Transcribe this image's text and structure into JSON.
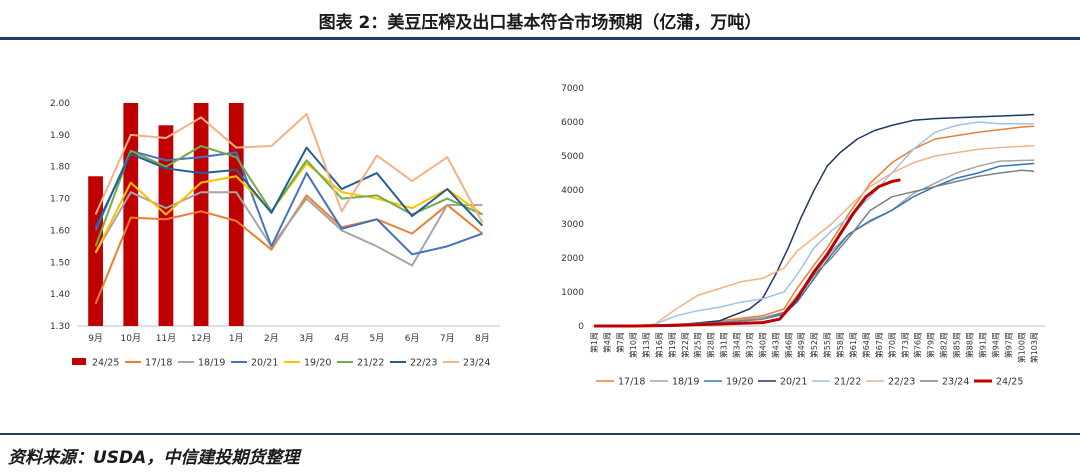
{
  "header": {
    "title": "图表 2：美豆压榨及出口基本符合市场预期（亿蒲，万吨）"
  },
  "footer": {
    "source": "资料来源：USDA，中信建投期货整理"
  },
  "chart_data": [
    {
      "type": "bar+line",
      "categories": [
        "9月",
        "10月",
        "11月",
        "12月",
        "1月",
        "2月",
        "3月",
        "4月",
        "5月",
        "6月",
        "7月",
        "8月"
      ],
      "ylim": [
        1.3,
        2.0
      ],
      "yticks": [
        "1.30",
        "1.40",
        "1.50",
        "1.60",
        "1.70",
        "1.80",
        "1.90",
        "2.00"
      ],
      "bar_series": {
        "name": "24/25",
        "color": "#c00000",
        "values": [
          1.77,
          2.0,
          1.93,
          2.0,
          2.0
        ]
      },
      "series": [
        {
          "name": "17/18",
          "color": "#ed7d31",
          "values": [
            1.37,
            1.64,
            1.635,
            1.66,
            1.63,
            1.54,
            1.71,
            1.61,
            1.635,
            1.59,
            1.68,
            1.59
          ]
        },
        {
          "name": "18/19",
          "color": "#a5a5a5",
          "values": [
            1.53,
            1.72,
            1.67,
            1.72,
            1.72,
            1.55,
            1.7,
            1.6,
            1.55,
            1.49,
            1.68,
            1.68
          ]
        },
        {
          "name": "20/21",
          "color": "#4472c4",
          "values": [
            1.6,
            1.85,
            1.82,
            1.83,
            1.845,
            1.55,
            1.78,
            1.605,
            1.635,
            1.525,
            1.55,
            1.59
          ]
        },
        {
          "name": "19/20",
          "color": "#ffc000",
          "values": [
            1.53,
            1.75,
            1.65,
            1.75,
            1.77,
            1.66,
            1.81,
            1.72,
            1.7,
            1.67,
            1.73,
            1.65
          ]
        },
        {
          "name": "21/22",
          "color": "#70ad47",
          "values": [
            1.55,
            1.85,
            1.8,
            1.865,
            1.83,
            1.66,
            1.82,
            1.7,
            1.71,
            1.65,
            1.7,
            1.65
          ]
        },
        {
          "name": "22/23",
          "color": "#255e91",
          "values": [
            1.61,
            1.84,
            1.795,
            1.78,
            1.79,
            1.655,
            1.86,
            1.73,
            1.78,
            1.645,
            1.73,
            1.615
          ]
        },
        {
          "name": "23/24",
          "color": "#f4b183",
          "values": [
            1.65,
            1.9,
            1.89,
            1.955,
            1.86,
            1.865,
            1.965,
            1.66,
            1.835,
            1.755,
            1.83,
            1.625
          ]
        }
      ]
    },
    {
      "type": "line",
      "ylim": [
        0,
        7000
      ],
      "yticks": [
        "0",
        "1000",
        "2000",
        "3000",
        "4000",
        "5000",
        "6000",
        "7000"
      ],
      "x_tick_labels": [
        "第1周",
        "第4周",
        "第7周",
        "第10周",
        "第13周",
        "第16周",
        "第19周",
        "第22周",
        "第25周",
        "第28周",
        "第31周",
        "第34周",
        "第37周",
        "第40周",
        "第43周",
        "第46周",
        "第49周",
        "第52周",
        "第55周",
        "第58周",
        "第61周",
        "第64周",
        "第67周",
        "第70周",
        "第73周",
        "第76周",
        "第79周",
        "第82周",
        "第85周",
        "第88周",
        "第91周",
        "第94周",
        "第97周",
        "第100周",
        "第103周"
      ],
      "series": [
        {
          "name": "17/18",
          "color": "#ed7d31",
          "width": 1.5,
          "points": [
            [
              1,
              0
            ],
            [
              10,
              0
            ],
            [
              20,
              30
            ],
            [
              30,
              150
            ],
            [
              40,
              300
            ],
            [
              45,
              500
            ],
            [
              48,
              1100
            ],
            [
              52,
              1800
            ],
            [
              55,
              2300
            ],
            [
              60,
              3300
            ],
            [
              65,
              4200
            ],
            [
              70,
              4800
            ],
            [
              75,
              5200
            ],
            [
              80,
              5500
            ],
            [
              90,
              5700
            ],
            [
              100,
              5850
            ],
            [
              103,
              5880
            ]
          ]
        },
        {
          "name": "18/19",
          "color": "#a5a5a5",
          "width": 1.5,
          "points": [
            [
              1,
              0
            ],
            [
              10,
              0
            ],
            [
              20,
              30
            ],
            [
              30,
              120
            ],
            [
              40,
              250
            ],
            [
              45,
              400
            ],
            [
              48,
              900
            ],
            [
              52,
              1500
            ],
            [
              56,
              2200
            ],
            [
              60,
              2700
            ],
            [
              64,
              3000
            ],
            [
              70,
              3400
            ],
            [
              75,
              3900
            ],
            [
              80,
              4200
            ],
            [
              85,
              4500
            ],
            [
              90,
              4700
            ],
            [
              95,
              4850
            ],
            [
              103,
              4880
            ]
          ]
        },
        {
          "name": "19/20",
          "color": "#2e75b6",
          "width": 1.5,
          "points": [
            [
              1,
              0
            ],
            [
              10,
              0
            ],
            [
              20,
              20
            ],
            [
              30,
              100
            ],
            [
              40,
              200
            ],
            [
              45,
              350
            ],
            [
              48,
              700
            ],
            [
              52,
              1400
            ],
            [
              56,
              2100
            ],
            [
              60,
              2700
            ],
            [
              65,
              3100
            ],
            [
              70,
              3400
            ],
            [
              75,
              3800
            ],
            [
              80,
              4100
            ],
            [
              85,
              4350
            ],
            [
              90,
              4500
            ],
            [
              95,
              4700
            ],
            [
              100,
              4750
            ],
            [
              103,
              4780
            ]
          ]
        },
        {
          "name": "20/21",
          "color": "#203864",
          "width": 1.5,
          "points": [
            [
              1,
              0
            ],
            [
              10,
              0
            ],
            [
              20,
              30
            ],
            [
              30,
              150
            ],
            [
              37,
              500
            ],
            [
              40,
              800
            ],
            [
              43,
              1500
            ],
            [
              46,
              2300
            ],
            [
              49,
              3200
            ],
            [
              52,
              4000
            ],
            [
              55,
              4700
            ],
            [
              58,
              5100
            ],
            [
              62,
              5500
            ],
            [
              66,
              5750
            ],
            [
              70,
              5900
            ],
            [
              75,
              6050
            ],
            [
              80,
              6100
            ],
            [
              90,
              6150
            ],
            [
              100,
              6200
            ],
            [
              103,
              6220
            ]
          ]
        },
        {
          "name": "21/22",
          "color": "#9dc3e6",
          "width": 1.5,
          "points": [
            [
              1,
              0
            ],
            [
              10,
              0
            ],
            [
              15,
              50
            ],
            [
              20,
              300
            ],
            [
              25,
              450
            ],
            [
              30,
              550
            ],
            [
              35,
              700
            ],
            [
              40,
              800
            ],
            [
              45,
              1000
            ],
            [
              48,
              1500
            ],
            [
              52,
              2300
            ],
            [
              56,
              2800
            ],
            [
              60,
              3200
            ],
            [
              65,
              3800
            ],
            [
              70,
              4500
            ],
            [
              75,
              5200
            ],
            [
              80,
              5700
            ],
            [
              85,
              5900
            ],
            [
              90,
              6000
            ],
            [
              95,
              5950
            ],
            [
              103,
              5950
            ]
          ]
        },
        {
          "name": "22/23",
          "color": "#f4b183",
          "width": 1.5,
          "points": [
            [
              1,
              0
            ],
            [
              10,
              0
            ],
            [
              15,
              50
            ],
            [
              20,
              500
            ],
            [
              25,
              900
            ],
            [
              30,
              1100
            ],
            [
              35,
              1300
            ],
            [
              40,
              1400
            ],
            [
              45,
              1700
            ],
            [
              48,
              2200
            ],
            [
              52,
              2600
            ],
            [
              56,
              3000
            ],
            [
              60,
              3500
            ],
            [
              65,
              4100
            ],
            [
              70,
              4500
            ],
            [
              75,
              4800
            ],
            [
              80,
              5000
            ],
            [
              85,
              5100
            ],
            [
              90,
              5200
            ],
            [
              95,
              5250
            ],
            [
              103,
              5300
            ]
          ]
        },
        {
          "name": "23/24",
          "color": "#7f7f7f",
          "width": 1.5,
          "points": [
            [
              1,
              0
            ],
            [
              10,
              0
            ],
            [
              20,
              50
            ],
            [
              30,
              100
            ],
            [
              40,
              200
            ],
            [
              45,
              400
            ],
            [
              48,
              800
            ],
            [
              52,
              1500
            ],
            [
              56,
              2000
            ],
            [
              60,
              2600
            ],
            [
              65,
              3400
            ],
            [
              70,
              3800
            ],
            [
              75,
              3950
            ],
            [
              80,
              4100
            ],
            [
              85,
              4250
            ],
            [
              90,
              4400
            ],
            [
              95,
              4500
            ],
            [
              100,
              4580
            ],
            [
              103,
              4550
            ]
          ]
        },
        {
          "name": "24/25",
          "color": "#c00000",
          "width": 3,
          "points": [
            [
              1,
              0
            ],
            [
              10,
              0
            ],
            [
              20,
              20
            ],
            [
              30,
              60
            ],
            [
              40,
              100
            ],
            [
              44,
              200
            ],
            [
              46,
              500
            ],
            [
              48,
              800
            ],
            [
              50,
              1200
            ],
            [
              52,
              1600
            ],
            [
              55,
              2100
            ],
            [
              58,
              2700
            ],
            [
              61,
              3300
            ],
            [
              64,
              3800
            ],
            [
              67,
              4100
            ],
            [
              70,
              4250
            ],
            [
              72,
              4300
            ]
          ]
        }
      ]
    }
  ]
}
